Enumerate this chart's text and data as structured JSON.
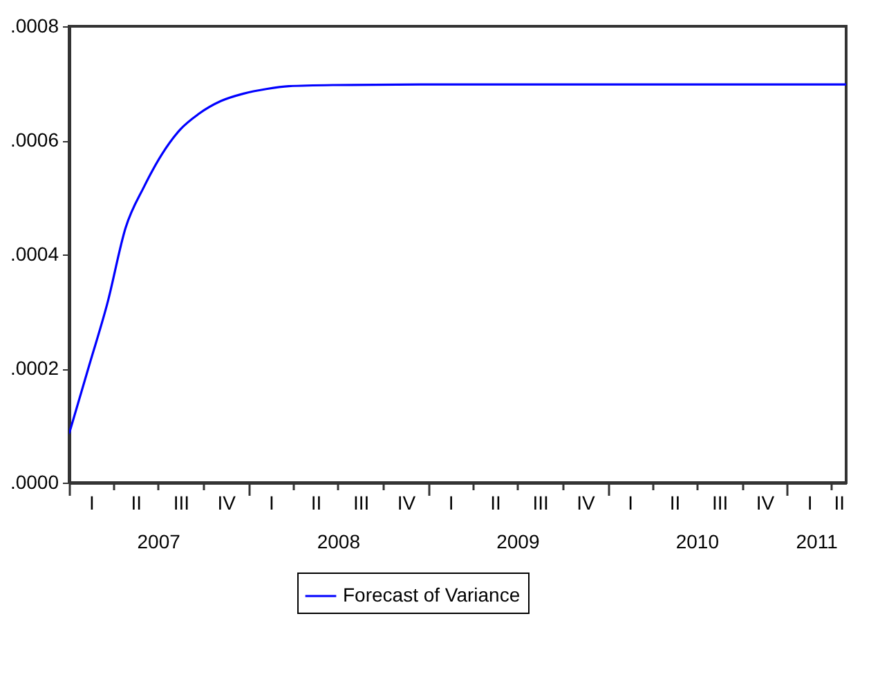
{
  "chart_data": {
    "type": "line",
    "x": [
      "2007-01-01",
      "2007-02-11",
      "2007-03-20",
      "2007-04-26",
      "2007-06-02",
      "2007-07-09",
      "2007-08-15",
      "2007-09-21",
      "2007-11-06",
      "2007-12-22",
      "2008-02-06",
      "2008-03-23",
      "2008-06-23",
      "2008-12-15",
      "2010-01-01",
      "2011-05-01"
    ],
    "series": [
      {
        "name": "Forecast of Variance",
        "color": "#0000ff",
        "values": [
          8.6e-05,
          0.000206,
          0.000315,
          0.000447,
          0.000518,
          0.000576,
          0.000619,
          0.000646,
          0.000669,
          0.000682,
          0.00069,
          0.000695,
          0.000697,
          0.000698,
          0.000698,
          0.000698
        ]
      }
    ],
    "xlim": [
      "2007-01-01",
      "2011-05-01"
    ],
    "xticks": [
      {
        "value": "2007-01-01",
        "label": null
      },
      {
        "value": "2007-04-01",
        "label": null
      },
      {
        "value": "2007-07-01",
        "label": null
      },
      {
        "value": "2007-10-01",
        "label": null
      },
      {
        "value": "2008-01-01",
        "label": null
      },
      {
        "value": "2008-04-01",
        "label": null
      },
      {
        "value": "2008-07-01",
        "label": null
      },
      {
        "value": "2008-10-01",
        "label": null
      },
      {
        "value": "2009-01-01",
        "label": null
      },
      {
        "value": "2009-04-01",
        "label": null
      },
      {
        "value": "2009-07-01",
        "label": null
      },
      {
        "value": "2009-10-01",
        "label": null
      },
      {
        "value": "2010-01-01",
        "label": null
      },
      {
        "value": "2010-04-01",
        "label": null
      },
      {
        "value": "2010-07-01",
        "label": null
      },
      {
        "value": "2010-10-01",
        "label": null
      },
      {
        "value": "2011-01-01",
        "label": null
      },
      {
        "value": "2011-04-01",
        "label": null
      },
      {
        "value": "2007-07-01",
        "label": "2007"
      },
      {
        "value": "2008-07-01",
        "label": "2008"
      },
      {
        "value": "2009-07-01",
        "label": "2009"
      },
      {
        "value": "2010-07-01",
        "label": "2010"
      },
      {
        "value": "2011-03-01",
        "label": "2011"
      }
    ],
    "ylim": [
      0,
      0.0008
    ],
    "yticks": [
      {
        "value": 0,
        "label": ".0000"
      },
      {
        "value": 0.0002,
        "label": ".0002"
      },
      {
        "value": 0.0004,
        "label": ".0004"
      },
      {
        "value": 0.0006,
        "label": ".0006"
      },
      {
        "value": 0.0008,
        "label": ".0008"
      }
    ],
    "annotations": [
      "I",
      "II",
      "III",
      "IV",
      "I",
      "II",
      "III",
      "IV",
      "I",
      "II",
      "III",
      "IV",
      "I",
      "II",
      "III",
      "IV",
      "I",
      "II"
    ],
    "grid": false,
    "legend": "bottom",
    "line_style": "solid",
    "marker": "none"
  }
}
